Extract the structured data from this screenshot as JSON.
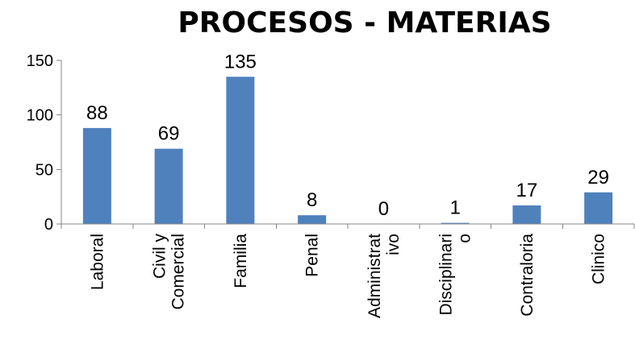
{
  "chart_data": {
    "type": "bar",
    "title": "PROCESOS - MATERIAS",
    "categories": [
      [
        "Laboral"
      ],
      [
        "Civil y",
        "Comercial"
      ],
      [
        "Familia"
      ],
      [
        "Penal"
      ],
      [
        "Administrat",
        "ivo"
      ],
      [
        "Disciplinari",
        "o"
      ],
      [
        "Contraloria"
      ],
      [
        "Clinico"
      ]
    ],
    "values": [
      88,
      69,
      135,
      8,
      0,
      1,
      17,
      29
    ],
    "data_labels": [
      "88",
      "69",
      "135",
      "8",
      "0",
      "1",
      "17",
      "29"
    ],
    "y_ticks": [
      0,
      50,
      100,
      150
    ],
    "ylim": [
      0,
      150
    ],
    "grid": false,
    "legend": "none",
    "bar_color": "#4f81bd"
  }
}
